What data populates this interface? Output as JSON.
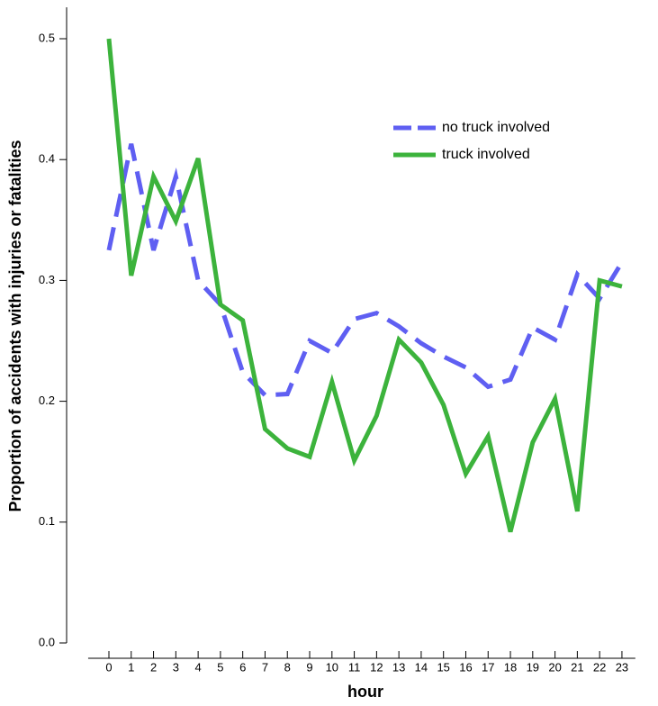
{
  "chart_data": {
    "type": "line",
    "x_label": "hour",
    "y_label": "Proportion of accidents with injuries or fatalities",
    "x": [
      0,
      1,
      2,
      3,
      4,
      5,
      6,
      7,
      8,
      9,
      10,
      11,
      12,
      13,
      14,
      15,
      16,
      17,
      18,
      19,
      20,
      21,
      22,
      23
    ],
    "xlim": [
      -0.93,
      23.6
    ],
    "xticks": [
      0,
      1,
      2,
      3,
      4,
      5,
      6,
      7,
      8,
      9,
      10,
      11,
      12,
      13,
      14,
      15,
      16,
      17,
      18,
      19,
      20,
      21,
      22,
      23
    ],
    "ylim": [
      0,
      0.526
    ],
    "yticks": [
      {
        "value": 0,
        "label": "0.0"
      },
      0.1,
      0.2,
      0.3,
      0.4,
      0.5
    ],
    "legend": "upper right",
    "series": [
      {
        "name": "no truck involved",
        "color": "#5f5ff2",
        "dashed": true,
        "values": [
          0.325,
          0.413,
          0.325,
          0.386,
          0.3,
          0.28,
          0.224,
          0.205,
          0.206,
          0.25,
          0.24,
          0.268,
          0.273,
          0.262,
          0.248,
          0.237,
          0.228,
          0.212,
          0.218,
          0.261,
          0.251,
          0.305,
          0.285,
          0.315
        ]
      },
      {
        "name": "truck involved",
        "color": "#3cb33c",
        "dashed": false,
        "values": [
          0.5,
          0.304,
          0.386,
          0.349,
          0.401,
          0.28,
          0.267,
          0.177,
          0.161,
          0.154,
          0.216,
          0.151,
          0.188,
          0.251,
          0.232,
          0.197,
          0.14,
          0.171,
          0.092,
          0.166,
          0.202,
          0.109,
          0.3,
          0.295
        ]
      }
    ]
  }
}
